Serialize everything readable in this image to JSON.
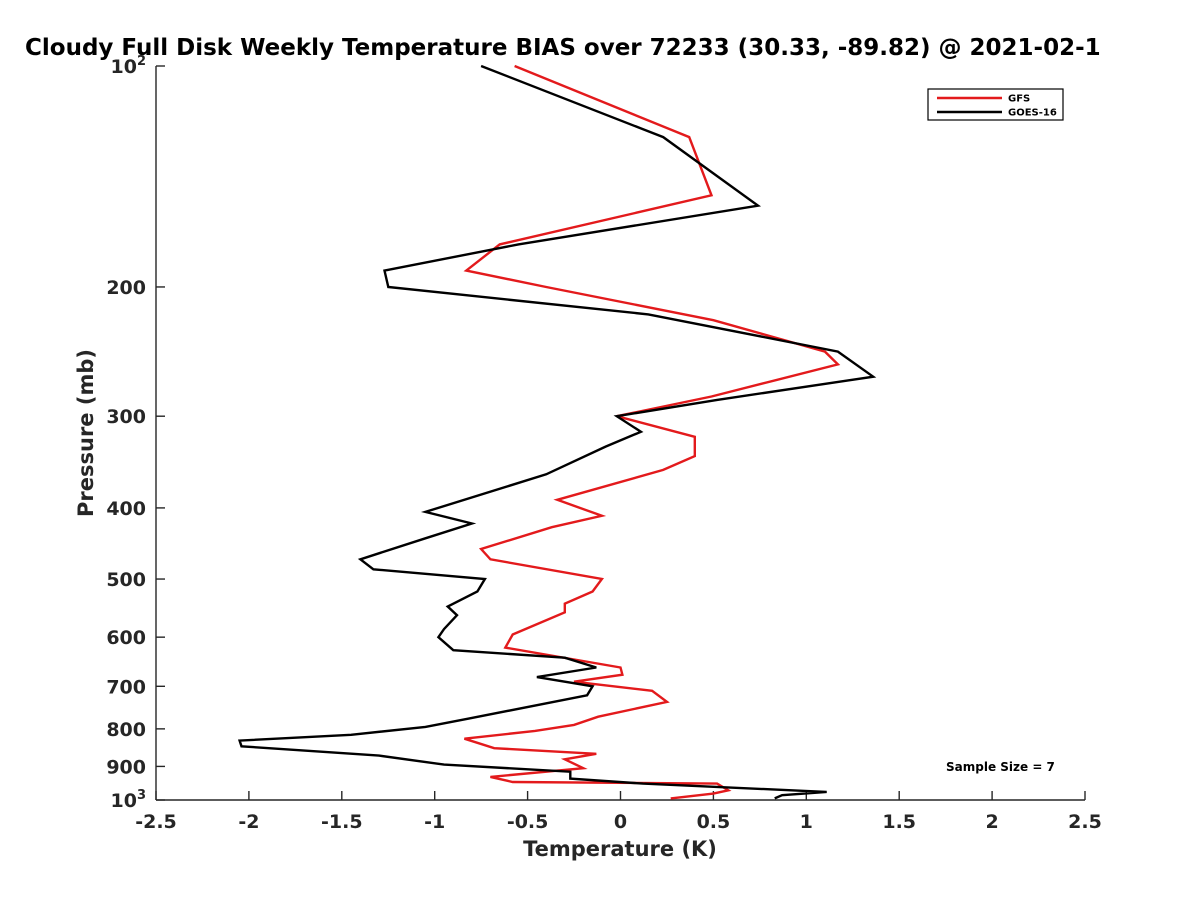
{
  "chart_data": {
    "type": "line",
    "title": "Cloudy Full Disk Weekly Temperature BIAS over 72233 (30.33, -89.82) @ 2021-02-1",
    "xlabel": "Temperature (K)",
    "ylabel": "Pressure (mb)",
    "xlim": [
      -2.5,
      2.5
    ],
    "ylim": [
      100,
      1000
    ],
    "y_scale": "log",
    "y_reversed": true,
    "x_ticks": [
      "-2.5",
      "-2",
      "-1.5",
      "-1",
      "-0.5",
      "0",
      "0.5",
      "1",
      "1.5",
      "2",
      "2.5"
    ],
    "x_tick_values": [
      -2.5,
      -2,
      -1.5,
      -1,
      -0.5,
      0,
      0.5,
      1,
      1.5,
      2,
      2.5
    ],
    "y_ticks": [
      {
        "value": 100,
        "base": "10",
        "exp": "2"
      },
      {
        "value": 200,
        "label": "200"
      },
      {
        "value": 300,
        "label": "300"
      },
      {
        "value": 400,
        "label": "400"
      },
      {
        "value": 500,
        "label": "500"
      },
      {
        "value": 600,
        "label": "600"
      },
      {
        "value": 700,
        "label": "700"
      },
      {
        "value": 800,
        "label": "800"
      },
      {
        "value": 900,
        "label": "900"
      },
      {
        "value": 1000,
        "base": "10",
        "exp": "3"
      }
    ],
    "grid": false,
    "legend_position": "top-right",
    "annotation": "Sample Size = 7",
    "series": [
      {
        "name": "GFS",
        "color": "#e31a1c",
        "points": [
          [
            -0.57,
            100
          ],
          [
            0.37,
            125
          ],
          [
            0.49,
            150
          ],
          [
            -0.65,
            175
          ],
          [
            -0.83,
            190
          ],
          [
            -0.4,
            200
          ],
          [
            0.5,
            222
          ],
          [
            1.1,
            245
          ],
          [
            1.17,
            255
          ],
          [
            0.49,
            282
          ],
          [
            -0.02,
            300
          ],
          [
            0.4,
            320
          ],
          [
            0.4,
            340
          ],
          [
            0.23,
            355
          ],
          [
            -0.34,
            390
          ],
          [
            -0.1,
            410
          ],
          [
            -0.37,
            425
          ],
          [
            -0.75,
            455
          ],
          [
            -0.7,
            470
          ],
          [
            -0.1,
            500
          ],
          [
            -0.15,
            520
          ],
          [
            -0.3,
            540
          ],
          [
            -0.3,
            555
          ],
          [
            -0.58,
            595
          ],
          [
            -0.62,
            620
          ],
          [
            0.0,
            660
          ],
          [
            0.01,
            675
          ],
          [
            -0.25,
            690
          ],
          [
            0.17,
            710
          ],
          [
            0.25,
            735
          ],
          [
            -0.12,
            770
          ],
          [
            -0.25,
            790
          ],
          [
            -0.46,
            805
          ],
          [
            -0.84,
            825
          ],
          [
            -0.68,
            850
          ],
          [
            -0.13,
            865
          ],
          [
            -0.3,
            880
          ],
          [
            -0.2,
            905
          ],
          [
            -0.7,
            930
          ],
          [
            -0.58,
            945
          ],
          [
            0.52,
            950
          ],
          [
            0.58,
            970
          ],
          [
            0.5,
            980
          ],
          [
            0.27,
            995
          ]
        ]
      },
      {
        "name": "GOES-16",
        "color": "#000000",
        "points": [
          [
            -0.75,
            100
          ],
          [
            0.23,
            125
          ],
          [
            0.74,
            155
          ],
          [
            -0.55,
            175
          ],
          [
            -1.27,
            190
          ],
          [
            -1.25,
            200
          ],
          [
            0.15,
            218
          ],
          [
            1.17,
            245
          ],
          [
            1.36,
            265
          ],
          [
            0.52,
            285
          ],
          [
            -0.02,
            300
          ],
          [
            0.11,
            315
          ],
          [
            -0.08,
            330
          ],
          [
            -0.4,
            360
          ],
          [
            -1.05,
            405
          ],
          [
            -0.8,
            420
          ],
          [
            -1.05,
            440
          ],
          [
            -1.4,
            470
          ],
          [
            -1.33,
            485
          ],
          [
            -0.73,
            500
          ],
          [
            -0.77,
            520
          ],
          [
            -0.93,
            545
          ],
          [
            -0.88,
            560
          ],
          [
            -0.95,
            585
          ],
          [
            -0.98,
            600
          ],
          [
            -0.9,
            625
          ],
          [
            -0.3,
            640
          ],
          [
            -0.13,
            660
          ],
          [
            -0.45,
            680
          ],
          [
            -0.15,
            700
          ],
          [
            -0.18,
            720
          ],
          [
            -0.82,
            775
          ],
          [
            -1.05,
            795
          ],
          [
            -1.45,
            815
          ],
          [
            -2.05,
            830
          ],
          [
            -2.04,
            845
          ],
          [
            -1.3,
            870
          ],
          [
            -0.95,
            895
          ],
          [
            -0.27,
            915
          ],
          [
            -0.27,
            935
          ],
          [
            0.12,
            950
          ],
          [
            1.11,
            975
          ],
          [
            0.87,
            985
          ],
          [
            0.83,
            995
          ]
        ]
      }
    ]
  }
}
